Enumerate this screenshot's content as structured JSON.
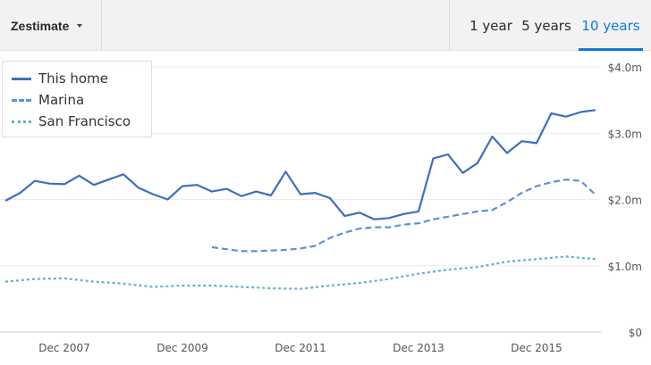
{
  "toolbar": {
    "metric_label": "Zestimate",
    "range_tabs": [
      {
        "label": "1 year",
        "active": false
      },
      {
        "label": "5 years",
        "active": false
      },
      {
        "label": "10 years",
        "active": true
      }
    ]
  },
  "colors": {
    "this_home": "#3c6fc2",
    "marina": "#5b93d1",
    "san_francisco": "#5fb4c6",
    "accent": "#1277e1",
    "grid": "#ececec"
  },
  "legend": {
    "items": [
      {
        "label": "This home",
        "style": "solid"
      },
      {
        "label": "Marina",
        "style": "dashed"
      },
      {
        "label": "San Francisco",
        "style": "dotted"
      }
    ]
  },
  "chart_data": {
    "type": "line",
    "title": "",
    "xlabel": "",
    "ylabel": "",
    "x_ticks": [
      "Dec 2007",
      "Dec 2009",
      "Dec 2011",
      "Dec 2013",
      "Dec 2015"
    ],
    "y_ticks": [
      "$0",
      "$1.0m",
      "$2.0m",
      "$3.0m",
      "$4.0m"
    ],
    "xlim": [
      "2006-12",
      "2016-12"
    ],
    "ylim": [
      0,
      4.0
    ],
    "y_unit": "millions USD",
    "grid": true,
    "legend_position": "top-left",
    "series": [
      {
        "name": "This home",
        "x": [
          "2006-12",
          "2007-03",
          "2007-06",
          "2007-09",
          "2007-12",
          "2008-03",
          "2008-06",
          "2008-09",
          "2008-12",
          "2009-03",
          "2009-06",
          "2009-09",
          "2009-12",
          "2010-03",
          "2010-06",
          "2010-09",
          "2010-12",
          "2011-03",
          "2011-06",
          "2011-09",
          "2011-12",
          "2012-03",
          "2012-06",
          "2012-09",
          "2012-12",
          "2013-03",
          "2013-06",
          "2013-09",
          "2013-12",
          "2014-03",
          "2014-06",
          "2014-09",
          "2014-12",
          "2015-03",
          "2015-06",
          "2015-09",
          "2015-12",
          "2016-03",
          "2016-06",
          "2016-09",
          "2016-12"
        ],
        "y": [
          1.98,
          2.1,
          2.28,
          2.24,
          2.23,
          2.36,
          2.22,
          2.3,
          2.38,
          2.18,
          2.08,
          2.0,
          2.2,
          2.22,
          2.12,
          2.16,
          2.05,
          2.12,
          2.06,
          2.42,
          2.08,
          2.1,
          2.02,
          1.75,
          1.8,
          1.7,
          1.72,
          1.78,
          1.82,
          2.62,
          2.68,
          2.4,
          2.55,
          2.95,
          2.7,
          2.88,
          2.85,
          3.3,
          3.25,
          3.32,
          3.35
        ]
      },
      {
        "name": "Marina",
        "x": [
          "2010-06",
          "2010-09",
          "2010-12",
          "2011-03",
          "2011-06",
          "2011-09",
          "2011-12",
          "2012-03",
          "2012-06",
          "2012-09",
          "2012-12",
          "2013-03",
          "2013-06",
          "2013-09",
          "2013-12",
          "2014-03",
          "2014-06",
          "2014-09",
          "2014-12",
          "2015-03",
          "2015-06",
          "2015-09",
          "2015-12",
          "2016-03",
          "2016-06",
          "2016-09",
          "2016-12"
        ],
        "y": [
          1.28,
          1.25,
          1.22,
          1.22,
          1.23,
          1.24,
          1.26,
          1.3,
          1.42,
          1.5,
          1.56,
          1.58,
          1.58,
          1.62,
          1.64,
          1.7,
          1.74,
          1.78,
          1.82,
          1.84,
          1.96,
          2.1,
          2.2,
          2.26,
          2.3,
          2.28,
          2.07
        ]
      },
      {
        "name": "San Francisco",
        "x": [
          "2006-12",
          "2007-06",
          "2007-12",
          "2008-06",
          "2008-12",
          "2009-06",
          "2009-12",
          "2010-06",
          "2010-12",
          "2011-06",
          "2011-12",
          "2012-06",
          "2012-12",
          "2013-06",
          "2013-12",
          "2014-06",
          "2014-12",
          "2015-06",
          "2015-12",
          "2016-06",
          "2016-12"
        ],
        "y": [
          0.76,
          0.8,
          0.81,
          0.76,
          0.73,
          0.68,
          0.7,
          0.7,
          0.68,
          0.66,
          0.65,
          0.7,
          0.74,
          0.8,
          0.88,
          0.94,
          0.98,
          1.06,
          1.1,
          1.14,
          1.1
        ]
      }
    ]
  }
}
